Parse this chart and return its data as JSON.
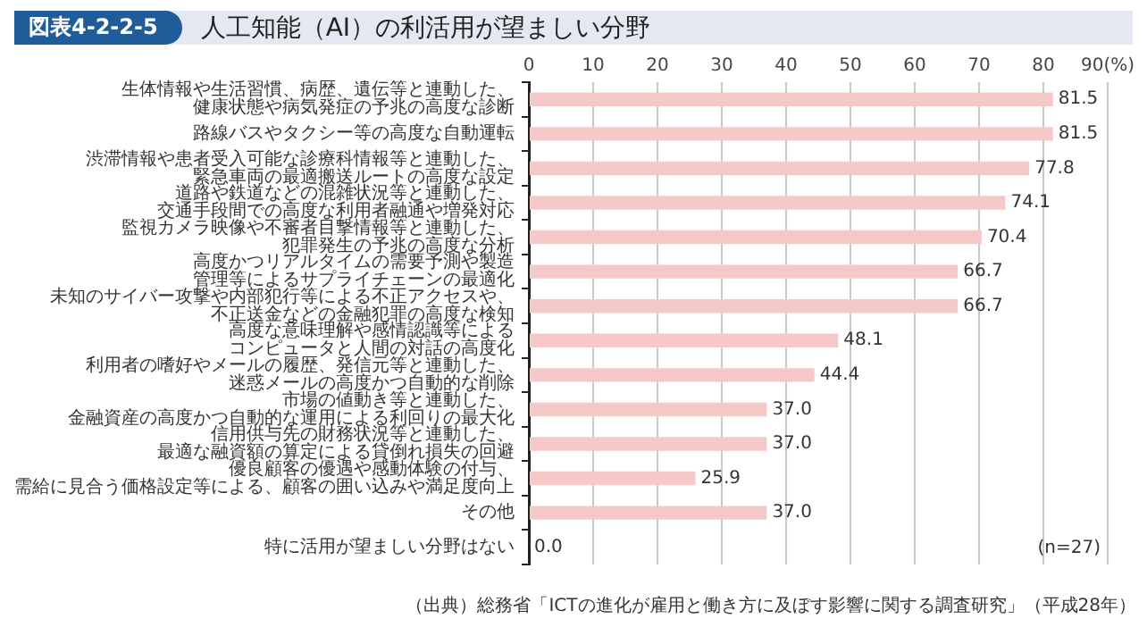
{
  "chart_data": {
    "type": "bar",
    "orientation": "horizontal",
    "subtitle": "図表4-2-2-5",
    "title": "人工知能（AI）の利活用が望ましい分野",
    "categories": [
      "生体情報や生活習慣、病歴、遺伝等と連動した、健康状態や病気発症の予兆の高度な診断",
      "路線バスやタクシー等の高度な自動運転",
      "渋滞情報や患者受入可能な診療科情報等と連動した、緊急車両の最適搬送ルートの高度な設定",
      "道路や鉄道などの混雑状況等と連動した、交通手段間での高度な利用者融通や増発対応",
      "監視カメラ映像や不審者目撃情報等と連動した、犯罪発生の予兆の高度な分析",
      "高度かつリアルタイムの需要予測や製造管理等によるサプライチェーンの最適化",
      "未知のサイバー攻撃や内部犯行等による不正アクセスや、不正送金などの金融犯罪の高度な検知",
      "高度な意味理解や感情認識等によるコンピュータと人間の対話の高度化",
      "利用者の嗜好やメールの履歴、発信元等と連動した、迷惑メールの高度かつ自動的な削除",
      "市場の値動き等と連動した、金融資産の高度かつ自動的な運用による利回りの最大化",
      "信用供与先の財務状況等と連動した、最適な融資額の算定による貸倒れ損失の回避",
      "優良顧客の優遇や感動体験の付与、需給に見合う価格設定等による、顧客の囲い込みや満足度向上",
      "その他",
      "特に活用が望ましい分野はない"
    ],
    "values": [
      81.5,
      81.5,
      77.8,
      74.1,
      70.4,
      66.7,
      66.7,
      48.1,
      44.4,
      37.0,
      37.0,
      25.9,
      37.0,
      0.0
    ],
    "value_labels": [
      "81.5",
      "81.5",
      "77.8",
      "74.1",
      "70.4",
      "66.7",
      "66.7",
      "48.1",
      "44.4",
      "37.0",
      "37.0",
      "25.9",
      "37.0",
      "0.0"
    ],
    "color": "#f6c9c9",
    "xlim": [
      0,
      90
    ],
    "xticks": [
      0,
      10,
      20,
      30,
      40,
      50,
      60,
      70,
      80,
      {
        "value": 90,
        "label": "90(%)"
      }
    ],
    "grid": "x",
    "legend": false,
    "annotations": [
      "(n=27)",
      "（出典）総務省「ICTの進化が雇用と働き方に及ぼす影響に関する調査研究」（平成28年）"
    ]
  }
}
